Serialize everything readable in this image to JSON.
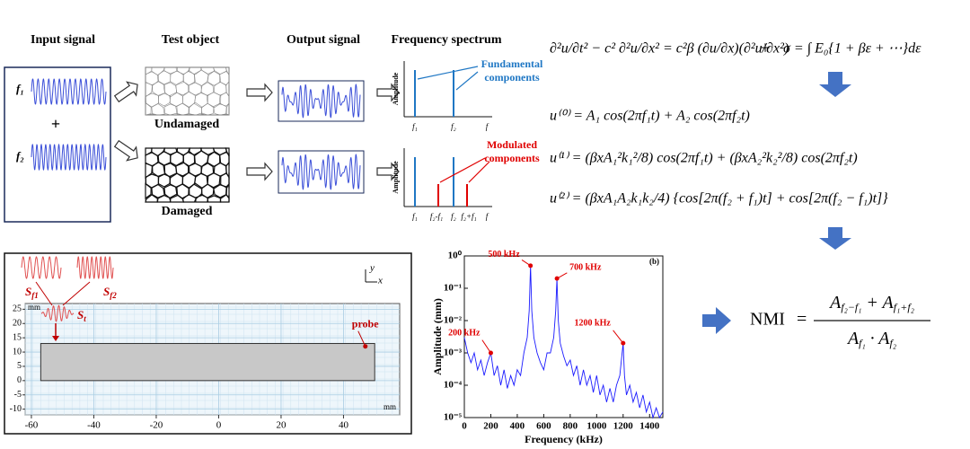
{
  "header": {
    "input_signal": "Input signal",
    "test_object": "Test object",
    "output_signal": "Output signal",
    "frequency_spectrum": "Frequency spectrum"
  },
  "schematic": {
    "input_labels": [
      "f₁",
      "f₂"
    ],
    "plus": "+",
    "undamaged": "Undamaged",
    "damaged": "Damaged",
    "amplitude": "Amplitude",
    "fundamental_note": [
      "Fundamental",
      "components"
    ],
    "modulated_note": [
      "Modulated",
      "components"
    ],
    "spectrum_top_labels": [
      "f₁",
      "f₂",
      "f"
    ],
    "spectrum_bottom_labels": [
      "f₁",
      "f₂-f₁",
      "f₂",
      "f₂+f₁",
      "f"
    ]
  },
  "equations": {
    "wave": "∂²u/∂t² − c² ∂²u/∂x² = c²β (∂u/∂x)(∂²u/∂x²)",
    "plus": "+",
    "stress": "σ = ∫ E₀{1 + βε + ⋯}dε",
    "u0": "u⁽⁰⁾ = A₁ cos(2πf₁t) + A₂ cos(2πf₂t)",
    "u1": "u⁽¹⁾ = (βxA₁²k₁²/8) cos(2πf₁t) + (βxA₂²k₂²/8) cos(2πf₂t)",
    "u2": "u⁽²⁾ = (βxA₁A₂k₁k₂/4) {cos[2π(f₂ + f₁)t] + cos[2π(f₂ − f₁)t]}"
  },
  "simulation": {
    "xlim": [
      -62,
      58
    ],
    "ylim": [
      -12,
      27
    ],
    "xticks": [
      -60,
      -40,
      -20,
      0,
      20,
      40
    ],
    "yticks": [
      -10,
      -5,
      0,
      5,
      10,
      15,
      20,
      25
    ],
    "unit": "mm",
    "block": {
      "x": [
        -57,
        50
      ],
      "y": [
        0,
        13
      ]
    },
    "probe": {
      "label": "probe",
      "x": 47,
      "y": 12
    },
    "sources": [
      {
        "symbol": "S",
        "sub": "f1"
      },
      {
        "symbol": "S",
        "sub": "f2"
      },
      {
        "symbol": "S",
        "sub": "t"
      }
    ],
    "axes": [
      "y",
      "x"
    ]
  },
  "spectrum": {
    "type": "line",
    "panel_label": "(b)",
    "x_label": "Frequency (kHz)",
    "y_label": "Amplitude (mm)",
    "color": "#1a1aff",
    "annotation_color": "#e00000",
    "log_y": true,
    "xlim": [
      0,
      1500
    ],
    "ylim": [
      1e-05,
      1
    ],
    "xticks": [
      0,
      200,
      400,
      600,
      800,
      1000,
      1200,
      1400
    ],
    "yticks": [
      {
        "value": 1e-05,
        "label": "10⁻⁵"
      },
      {
        "value": 0.0001,
        "label": "10⁻⁴"
      },
      {
        "value": 0.001,
        "label": "10⁻³"
      },
      {
        "value": 0.01,
        "label": "10⁻²"
      },
      {
        "value": 0.1,
        "label": "10⁻¹"
      },
      {
        "value": 1,
        "label": "10⁰"
      }
    ],
    "x": [
      0,
      25,
      50,
      75,
      100,
      125,
      150,
      175,
      200,
      225,
      250,
      275,
      300,
      325,
      350,
      375,
      400,
      425,
      450,
      475,
      490,
      500,
      510,
      525,
      550,
      575,
      600,
      625,
      650,
      675,
      690,
      700,
      710,
      725,
      750,
      775,
      800,
      825,
      850,
      875,
      900,
      925,
      950,
      975,
      1000,
      1025,
      1050,
      1075,
      1100,
      1125,
      1150,
      1175,
      1200,
      1210,
      1225,
      1250,
      1275,
      1300,
      1325,
      1350,
      1375,
      1400,
      1425,
      1450,
      1475,
      1500
    ],
    "values": [
      0.003,
      0.001,
      0.0005,
      0.001,
      0.0003,
      0.0006,
      0.0002,
      0.0005,
      0.001,
      0.0002,
      0.0004,
      0.0001,
      0.0003,
      8e-05,
      0.0002,
      0.0001,
      0.0003,
      0.0002,
      0.001,
      0.003,
      0.02,
      0.5,
      0.02,
      0.003,
      0.001,
      0.0005,
      0.0003,
      0.001,
      0.001,
      0.003,
      0.02,
      0.2,
      0.01,
      0.002,
      0.0008,
      0.0004,
      0.0006,
      0.0002,
      0.0004,
      0.0001,
      0.0003,
      0.0001,
      0.0002,
      6e-05,
      0.0002,
      5e-05,
      0.0001,
      3e-05,
      8e-05,
      3e-05,
      0.0001,
      0.0002,
      0.002,
      0.0002,
      5e-05,
      0.0001,
      3e-05,
      6e-05,
      2e-05,
      5e-05,
      1.5e-05,
      3e-05,
      1e-05,
      2e-05,
      1e-05,
      1.5e-05
    ],
    "annotations": [
      {
        "text": "500 kHz",
        "x": 500,
        "y": 0.5
      },
      {
        "text": "700 kHz",
        "x": 700,
        "y": 0.2
      },
      {
        "text": "200 kHz",
        "x": 200,
        "y": 0.001
      },
      {
        "text": "1200 kHz",
        "x": 1200,
        "y": 0.002
      }
    ]
  },
  "nmi": {
    "lhs": "NMI",
    "equals": "=",
    "numerator": [
      {
        "t": "A"
      },
      {
        "sub": "f₂−f₁"
      },
      {
        "t": " + A"
      },
      {
        "sub": "f₁+f₂"
      }
    ],
    "denominator": [
      {
        "t": "A"
      },
      {
        "sub": "f₁"
      },
      {
        "t": " · A"
      },
      {
        "sub": "f₂"
      }
    ]
  }
}
